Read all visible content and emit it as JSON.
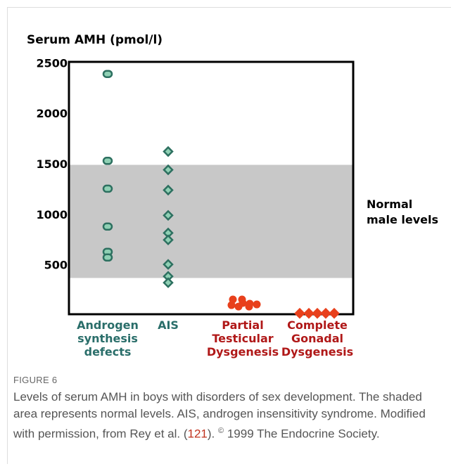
{
  "chart_data": {
    "type": "strip",
    "y_label": "Serum AMH (pmol/l)",
    "ylim": [
      0,
      2520
    ],
    "yticks": [
      500,
      1000,
      1500,
      2000,
      2500
    ],
    "band": {
      "from": 380,
      "to": 1500,
      "color": "#c8c8c8",
      "label": "Normal male levels"
    },
    "series": [
      {
        "name": "Androgen synthesis defects",
        "marker": "oval",
        "color": "#2d7060",
        "fill": "#8fd0b4",
        "label_color": "#2a6e6a",
        "values": [
          2400,
          1540,
          1264,
          889,
          639,
          583
        ]
      },
      {
        "name": "AIS",
        "marker": "diamond",
        "color": "#2d7060",
        "fill": "#8fd0b4",
        "label_color": "#2a6e6a",
        "values": [
          1632,
          1451,
          1250,
          1000,
          826,
          757,
          514,
          396,
          333
        ]
      },
      {
        "name": "Partial Testicular Dysgenesis",
        "marker": "circle",
        "color": "#e8401c",
        "fill": "#e8401c",
        "label_color": "#b01818",
        "values": [
          167,
          167,
          125,
          111,
          97,
          97,
          118,
          132
        ]
      },
      {
        "name": "Complete Gonadal Dysgenesis",
        "marker": "diamond",
        "color": "#e8401c",
        "fill": "#e8401c",
        "label_color": "#b01818",
        "values": [
          30,
          30,
          30,
          30,
          30
        ]
      }
    ]
  },
  "caption": {
    "label": "FIGURE 6",
    "parts": [
      "Levels of serum AMH in boys with disorders of sex development. The shaded area represents normal levels. AIS, androgen insensitivity syndrome. Modified with permission, from Rey et al. (",
      "121",
      "). ",
      "©",
      " 1999 The Endocrine Society."
    ]
  }
}
